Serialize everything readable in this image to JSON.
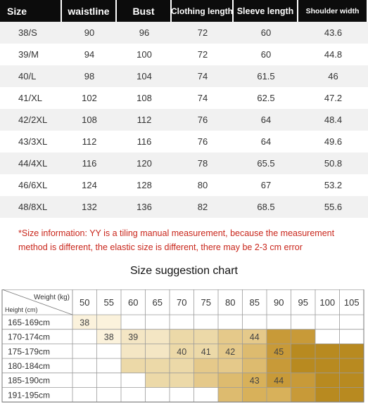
{
  "size_table": {
    "headers": [
      "Size",
      "waistline",
      "Bust",
      "Clothing length",
      "Sleeve length",
      "Shoulder width"
    ],
    "rows": [
      [
        "38/S",
        "90",
        "96",
        "72",
        "60",
        "43.6"
      ],
      [
        "39/M",
        "94",
        "100",
        "72",
        "60",
        "44.8"
      ],
      [
        "40/L",
        "98",
        "104",
        "74",
        "61.5",
        "46"
      ],
      [
        "41/XL",
        "102",
        "108",
        "74",
        "62.5",
        "47.2"
      ],
      [
        "42/2XL",
        "108",
        "112",
        "76",
        "64",
        "48.4"
      ],
      [
        "43/3XL",
        "112",
        "116",
        "76",
        "64",
        "49.6"
      ],
      [
        "44/4XL",
        "116",
        "120",
        "78",
        "65.5",
        "50.8"
      ],
      [
        "46/6XL",
        "124",
        "128",
        "80",
        "67",
        "53.2"
      ],
      [
        "48/8XL",
        "132",
        "136",
        "82",
        "68.5",
        "55.6"
      ]
    ]
  },
  "note": {
    "line1": "*Size information: YY is a tiling manual measurement, because the measurement",
    "line2": "method is different, the elastic size is different, there may be 2-3 cm error"
  },
  "suggestion_chart": {
    "title": "Size suggestion chart",
    "corner_weight_label": "Weight (kg)",
    "corner_height_label": "Height (cm)",
    "weights": [
      "50",
      "55",
      "60",
      "65",
      "70",
      "75",
      "80",
      "85",
      "90",
      "95",
      "100",
      "105"
    ],
    "heights": [
      "165-169cm",
      "170-174cm",
      "175-179cm",
      "180-184cm",
      "185-190cm",
      "191-195cm"
    ],
    "regions": [
      {
        "size": "38",
        "color": "#fbf2dc"
      },
      {
        "size": "39",
        "color": "#f4e6c4"
      },
      {
        "size": "40",
        "color": "#ecd9a8"
      },
      {
        "size": "41",
        "color": "#e5c98a"
      },
      {
        "size": "42",
        "color": "#ddbb6f"
      },
      {
        "size": "43",
        "color": "#d8b15a"
      },
      {
        "size": "44",
        "color": "#c89a38"
      },
      {
        "size": "45",
        "color": "#b88a20"
      }
    ],
    "labels": [
      {
        "text": "38",
        "col": 0,
        "row": 0
      },
      {
        "text": "38",
        "col": 1,
        "row": 1
      },
      {
        "text": "39",
        "col": 2,
        "row": 1
      },
      {
        "text": "40",
        "col": 4,
        "row": 2
      },
      {
        "text": "41",
        "col": 5,
        "row": 2
      },
      {
        "text": "42",
        "col": 6,
        "row": 2
      },
      {
        "text": "44",
        "col": 7,
        "row": 1
      },
      {
        "text": "45",
        "col": 8,
        "row": 2
      },
      {
        "text": "43",
        "col": 7,
        "row": 4
      },
      {
        "text": "44",
        "col": 8,
        "row": 4
      }
    ],
    "grid": [
      [
        0,
        0,
        -1,
        -1,
        -1,
        -1,
        -1,
        -1,
        -1,
        -1,
        -1,
        -1
      ],
      [
        -1,
        0,
        1,
        1,
        2,
        2,
        3,
        3,
        4,
        4,
        -1,
        -1
      ],
      [
        -1,
        -1,
        1,
        1,
        2,
        2,
        3,
        3,
        4,
        4,
        4,
        4
      ],
      [
        -1,
        -1,
        2,
        2,
        2,
        3,
        3,
        3,
        4,
        4,
        4,
        4
      ],
      [
        -1,
        -1,
        -1,
        2,
        2,
        3,
        3,
        4,
        4,
        4,
        4,
        4
      ],
      [
        -1,
        -1,
        -1,
        -1,
        -1,
        -1,
        3,
        3,
        4,
        4,
        4,
        4
      ]
    ],
    "grid_region": [
      [
        0,
        0,
        -1,
        -1,
        -1,
        -1,
        -1,
        -1,
        -1,
        -1,
        -1,
        -1
      ],
      [
        -1,
        0,
        1,
        1,
        2,
        2,
        3,
        3,
        6,
        6,
        -1,
        -1
      ],
      [
        -1,
        -1,
        1,
        1,
        2,
        2,
        3,
        4,
        6,
        7,
        7,
        7
      ],
      [
        -1,
        -1,
        2,
        2,
        2,
        3,
        3,
        4,
        6,
        7,
        7,
        7
      ],
      [
        -1,
        -1,
        -1,
        2,
        2,
        3,
        4,
        5,
        6,
        6,
        7,
        7
      ],
      [
        -1,
        -1,
        -1,
        -1,
        -1,
        -1,
        4,
        5,
        5,
        6,
        7,
        7
      ]
    ]
  }
}
